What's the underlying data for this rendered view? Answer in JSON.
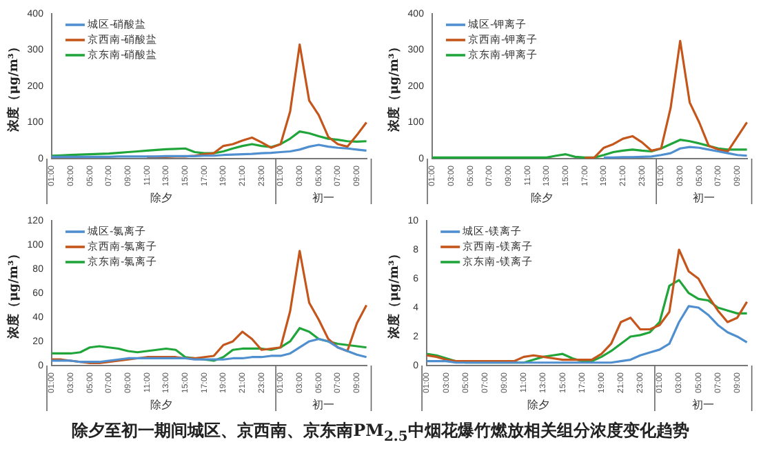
{
  "chart_data": [
    {
      "type": "line",
      "ylabel": "浓度（μg/m³）",
      "categories": [
        "01:00",
        null,
        "03:00",
        null,
        "05:00",
        null,
        "07:00",
        null,
        "09:00",
        null,
        "11:00",
        null,
        "13:00",
        null,
        "15:00",
        null,
        "17:00",
        null,
        "19:00",
        null,
        "21:00",
        null,
        "23:00",
        null,
        "01:00",
        null,
        "03:00",
        null,
        "05:00",
        null,
        "07:00",
        null,
        "09:00",
        null
      ],
      "series": [
        {
          "name": "城区-硝酸盐",
          "color": "#4f8fcf",
          "values": [
            5,
            5,
            5,
            5,
            5,
            5,
            5,
            6,
            6,
            6,
            6,
            6,
            7,
            7,
            7,
            7,
            8,
            8,
            10,
            11,
            12,
            13,
            15,
            16,
            18,
            20,
            25,
            33,
            38,
            33,
            30,
            28,
            25,
            22
          ]
        },
        {
          "name": "京西南-硝酸盐",
          "color": "#c4561c",
          "values": [
            null,
            null,
            null,
            null,
            null,
            null,
            null,
            null,
            null,
            null,
            5,
            5,
            5,
            6,
            6,
            8,
            12,
            15,
            35,
            40,
            50,
            58,
            45,
            30,
            40,
            130,
            315,
            160,
            120,
            60,
            40,
            33,
            65,
            100
          ]
        },
        {
          "name": "京东南-硝酸盐",
          "color": "#1fa53a",
          "values": [
            8,
            9,
            10,
            11,
            12,
            13,
            14,
            16,
            18,
            20,
            22,
            24,
            26,
            27,
            28,
            18,
            15,
            15,
            20,
            28,
            35,
            40,
            35,
            32,
            40,
            55,
            75,
            70,
            62,
            55,
            52,
            48,
            47,
            48
          ]
        }
      ],
      "ylim": [
        0,
        400
      ],
      "yticks": [
        0,
        100,
        200,
        300,
        400
      ],
      "grid": false,
      "legend": "top left",
      "marker": "none",
      "annotations": [
        "除夕",
        "初一"
      ]
    },
    {
      "type": "line",
      "ylabel": "浓度（μg/m³）",
      "categories": [
        "01:00",
        null,
        "03:00",
        null,
        "05:00",
        null,
        "07:00",
        null,
        "09:00",
        null,
        "11:00",
        null,
        "13:00",
        null,
        "15:00",
        null,
        "17:00",
        null,
        "19:00",
        null,
        "21:00",
        null,
        "23:00",
        null,
        "01:00",
        null,
        "03:00",
        null,
        "05:00",
        null,
        "07:00",
        null,
        "09:00",
        null
      ],
      "series": [
        {
          "name": "城区-钾离子",
          "color": "#4f8fcf",
          "values": [
            null,
            null,
            null,
            null,
            null,
            null,
            null,
            null,
            null,
            null,
            null,
            null,
            null,
            null,
            null,
            null,
            null,
            null,
            3,
            3,
            4,
            4,
            5,
            6,
            10,
            15,
            28,
            32,
            30,
            25,
            20,
            15,
            10,
            8
          ]
        },
        {
          "name": "京西南-钾离子",
          "color": "#c4561c",
          "values": [
            null,
            null,
            null,
            null,
            null,
            null,
            null,
            null,
            null,
            null,
            null,
            null,
            null,
            null,
            null,
            null,
            2,
            3,
            30,
            40,
            55,
            62,
            45,
            22,
            28,
            140,
            325,
            155,
            100,
            35,
            25,
            20,
            60,
            100
          ]
        },
        {
          "name": "京东南-钾离子",
          "color": "#1fa53a",
          "values": [
            3,
            3,
            3,
            3,
            3,
            3,
            3,
            3,
            3,
            3,
            3,
            3,
            3,
            8,
            12,
            5,
            3,
            3,
            10,
            18,
            22,
            25,
            22,
            20,
            28,
            40,
            52,
            48,
            42,
            35,
            28,
            25,
            25,
            25
          ]
        }
      ],
      "ylim": [
        0,
        400
      ],
      "yticks": [
        0,
        100,
        200,
        300,
        400
      ],
      "grid": false,
      "legend": "top left",
      "marker": "none",
      "annotations": [
        "除夕",
        "初一"
      ]
    },
    {
      "type": "line",
      "ylabel": "浓度（μg/m³）",
      "categories": [
        "01:00",
        null,
        "03:00",
        null,
        "05:00",
        null,
        "07:00",
        null,
        "09:00",
        null,
        "11:00",
        null,
        "13:00",
        null,
        "15:00",
        null,
        "17:00",
        null,
        "19:00",
        null,
        "21:00",
        null,
        "23:00",
        null,
        "01:00",
        null,
        "03:00",
        null,
        "05:00",
        null,
        "07:00",
        null,
        "09:00",
        null
      ],
      "series": [
        {
          "name": "城区-氯离子",
          "color": "#4f8fcf",
          "values": [
            4,
            4,
            4,
            3,
            3,
            3,
            4,
            5,
            6,
            6,
            6,
            6,
            6,
            6,
            6,
            5,
            5,
            5,
            5,
            6,
            6,
            7,
            7,
            8,
            8,
            10,
            15,
            20,
            22,
            20,
            15,
            12,
            9,
            7
          ]
        },
        {
          "name": "京西南-氯离子",
          "color": "#c4561c",
          "values": [
            5,
            5,
            4,
            3,
            2,
            2,
            3,
            4,
            5,
            6,
            7,
            7,
            7,
            7,
            6,
            6,
            7,
            8,
            17,
            20,
            28,
            22,
            13,
            14,
            15,
            45,
            95,
            52,
            38,
            22,
            15,
            12,
            35,
            50
          ]
        },
        {
          "name": "京东南-氯离子",
          "color": "#1fa53a",
          "values": [
            10,
            10,
            10,
            11,
            15,
            16,
            15,
            14,
            12,
            11,
            12,
            13,
            14,
            13,
            7,
            6,
            5,
            4,
            7,
            13,
            14,
            14,
            14,
            13,
            15,
            20,
            31,
            28,
            22,
            20,
            18,
            17,
            16,
            15
          ]
        }
      ],
      "ylim": [
        0,
        120
      ],
      "yticks": [
        0,
        20,
        40,
        60,
        80,
        100,
        120
      ],
      "grid": false,
      "legend": "top left",
      "marker": "none",
      "annotations": [
        "除夕",
        "初一"
      ]
    },
    {
      "type": "line",
      "ylabel": "浓度（μg/m³）",
      "categories": [
        "01:00",
        null,
        "03:00",
        null,
        "05:00",
        null,
        "07:00",
        null,
        "09:00",
        null,
        "11:00",
        null,
        "13:00",
        null,
        "15:00",
        null,
        "17:00",
        null,
        "19:00",
        null,
        "21:00",
        null,
        "23:00",
        null,
        "01:00",
        null,
        "03:00",
        null,
        "05:00",
        null,
        "07:00",
        null,
        "09:00",
        null
      ],
      "series": [
        {
          "name": "城区-镁离子",
          "color": "#4f8fcf",
          "values": [
            0.3,
            0.3,
            0.3,
            0.2,
            0.2,
            0.2,
            0.2,
            0.2,
            0.2,
            0.2,
            0.2,
            0.2,
            0.2,
            0.2,
            0.2,
            0.2,
            0.2,
            0.2,
            0.2,
            0.2,
            0.3,
            0.4,
            0.7,
            0.9,
            1.1,
            1.5,
            3.0,
            4.1,
            4.0,
            3.5,
            2.8,
            2.3,
            2.0,
            1.6
          ]
        },
        {
          "name": "京西南-镁离子",
          "color": "#c4561c",
          "values": [
            0.7,
            0.6,
            0.4,
            0.3,
            0.3,
            0.3,
            0.3,
            0.3,
            0.3,
            0.3,
            0.6,
            0.7,
            0.6,
            0.5,
            0.4,
            0.4,
            0.4,
            0.4,
            0.8,
            1.5,
            3.0,
            3.3,
            2.5,
            2.5,
            2.8,
            3.7,
            8.0,
            6.5,
            6.0,
            4.8,
            3.8,
            3.0,
            3.3,
            4.4
          ]
        },
        {
          "name": "京东南-镁离子",
          "color": "#1fa53a",
          "values": [
            0.8,
            0.7,
            0.5,
            0.3,
            0.2,
            0.2,
            0.2,
            0.2,
            0.2,
            0.2,
            0.2,
            0.4,
            0.6,
            0.7,
            0.8,
            0.5,
            0.3,
            0.3,
            0.6,
            1.0,
            1.5,
            2.0,
            2.1,
            2.3,
            3.0,
            5.5,
            5.9,
            5.0,
            4.6,
            4.5,
            4.0,
            3.8,
            3.6,
            3.6
          ]
        }
      ],
      "ylim": [
        0,
        10
      ],
      "yticks": [
        0,
        2,
        4,
        6,
        8,
        10
      ],
      "grid": false,
      "legend": "top left",
      "marker": "none",
      "annotations": [
        "除夕",
        "初一"
      ]
    },
    {
      "type": "other",
      "title": "除夕至初一期间城区、京西南、京东南PM$_{2.5}$中烟花爆竹燃放相关组分浓度变化趋势"
    }
  ]
}
